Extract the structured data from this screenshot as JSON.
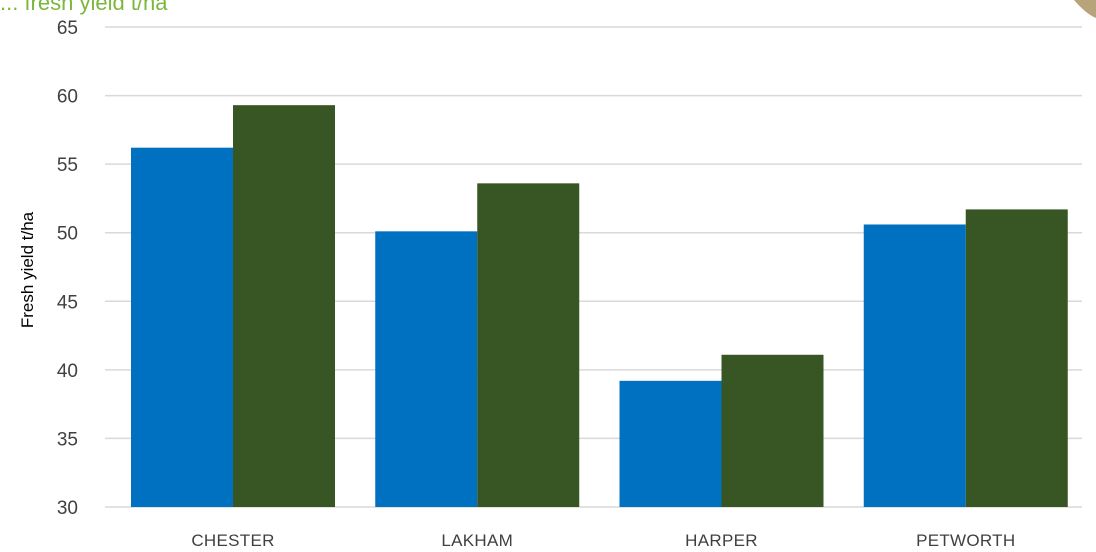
{
  "colors": {
    "series1": "#0070c0",
    "series2": "#375623",
    "grid": "#d9d9d9",
    "title": "#7ab83c",
    "corner_decoration": "#b8a47a"
  },
  "chart_data": {
    "type": "bar",
    "title": "... fresh yield t/ha",
    "xlabel": "",
    "ylabel": "Fresh yield t/ha",
    "ylim": [
      30,
      65
    ],
    "yticks": [
      30,
      35,
      40,
      45,
      50,
      55,
      60,
      65
    ],
    "grid": true,
    "legend": "none",
    "categories": [
      "CHESTER",
      "LAKHAM",
      "HARPER",
      "PETWORTH"
    ],
    "series": [
      {
        "values": [
          56.2,
          50.1,
          39.2,
          50.6
        ]
      },
      {
        "values": [
          59.3,
          53.6,
          41.1,
          51.7
        ]
      }
    ]
  }
}
